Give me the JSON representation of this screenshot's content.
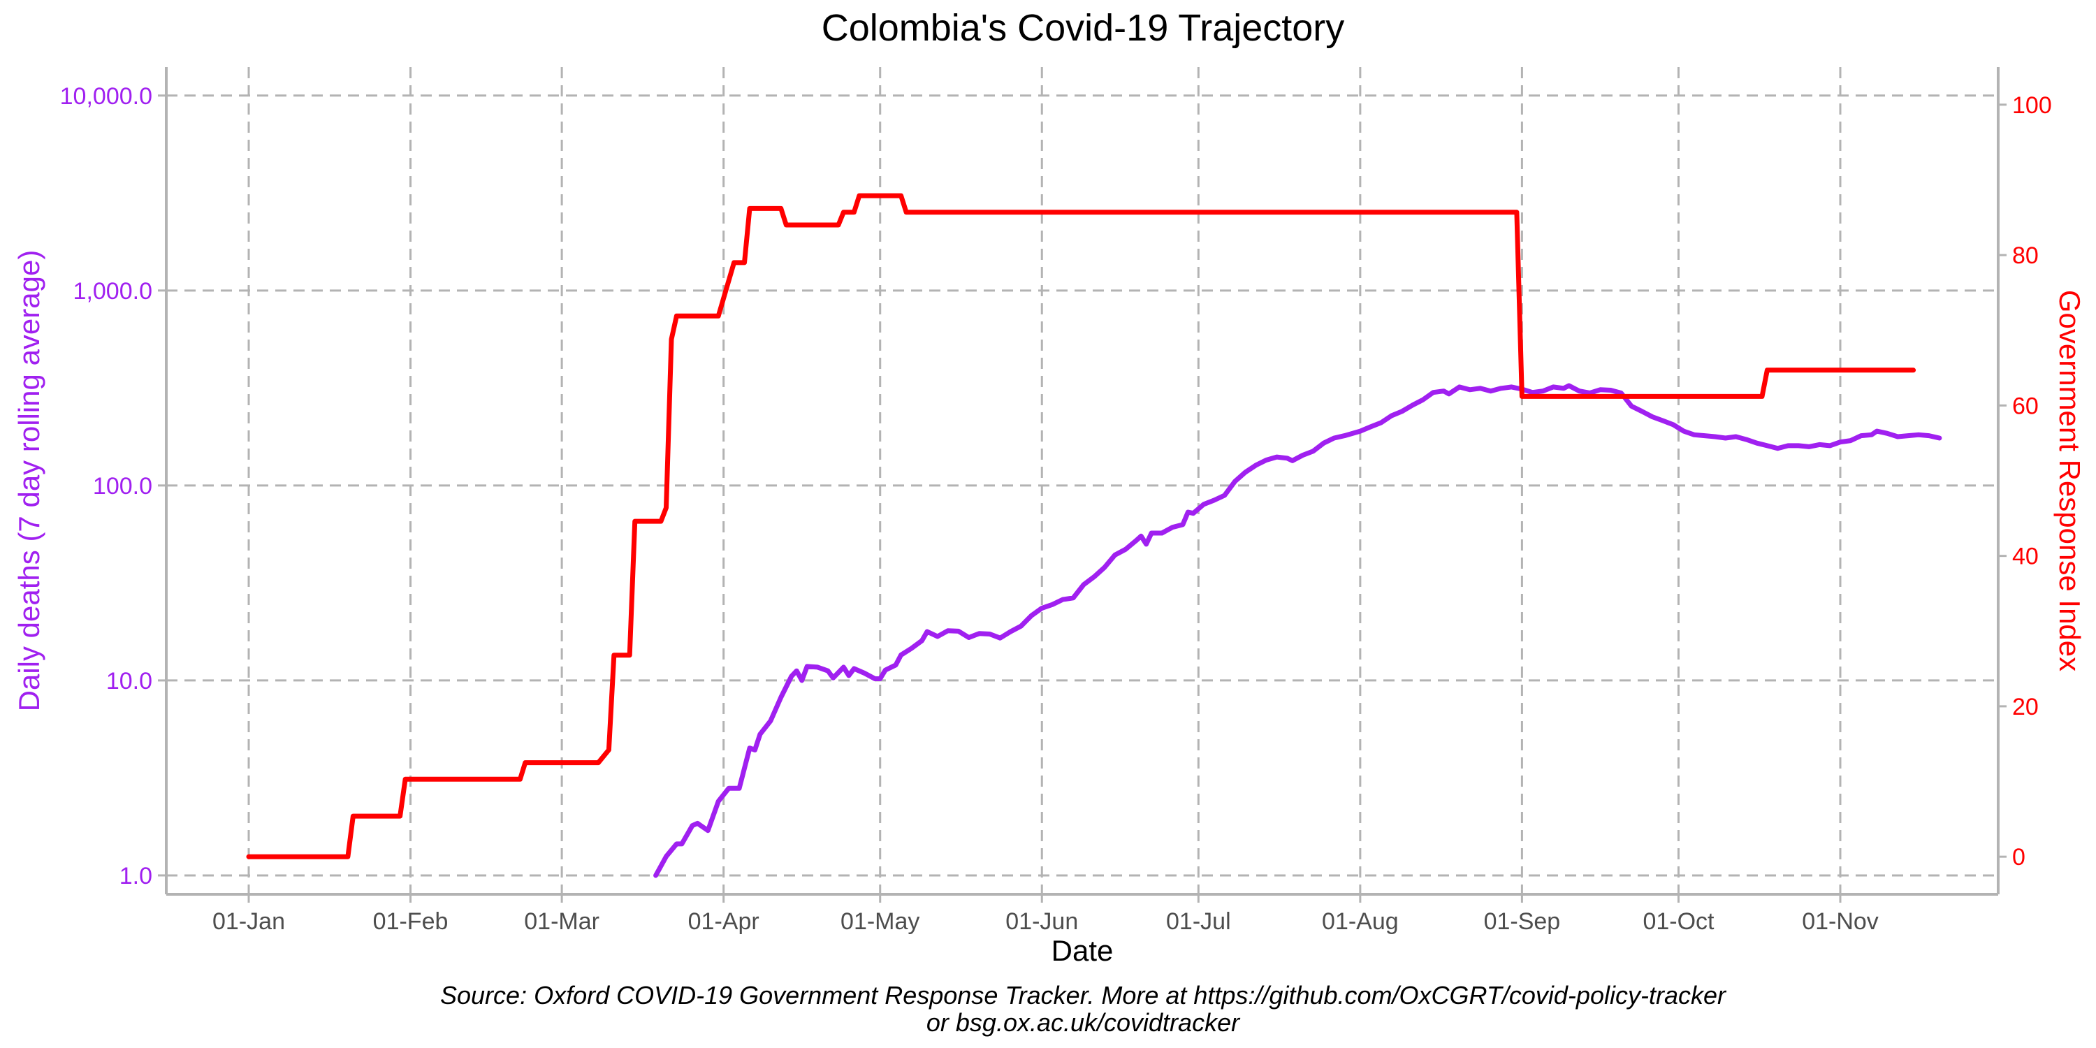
{
  "chart_data": {
    "type": "line",
    "title": "Colombia's Covid-19 Trajectory",
    "xlabel": "Date",
    "ylabel_left": "Daily deaths (7 day rolling average)",
    "ylabel_right": "Government Response Index",
    "x_domain": [
      "2020-01-01",
      "2020-11-20"
    ],
    "x_ticks": [
      {
        "date": "2020-01-01",
        "label": "01-Jan"
      },
      {
        "date": "2020-02-01",
        "label": "01-Feb"
      },
      {
        "date": "2020-03-01",
        "label": "01-Mar"
      },
      {
        "date": "2020-04-01",
        "label": "01-Apr"
      },
      {
        "date": "2020-05-01",
        "label": "01-May"
      },
      {
        "date": "2020-06-01",
        "label": "01-Jun"
      },
      {
        "date": "2020-07-01",
        "label": "01-Jul"
      },
      {
        "date": "2020-08-01",
        "label": "01-Aug"
      },
      {
        "date": "2020-09-01",
        "label": "01-Sep"
      },
      {
        "date": "2020-10-01",
        "label": "01-Oct"
      },
      {
        "date": "2020-11-01",
        "label": "01-Nov"
      }
    ],
    "y_left": {
      "scale": "log10",
      "ylim": [
        0.8,
        14000
      ],
      "ticks": [
        {
          "value": 1,
          "label": "1.0"
        },
        {
          "value": 10,
          "label": "10.0"
        },
        {
          "value": 100,
          "label": "100.0"
        },
        {
          "value": 1000,
          "label": "1,000.0"
        },
        {
          "value": 10000,
          "label": "10,000.0"
        }
      ],
      "color": "#a020f0"
    },
    "y_right": {
      "scale": "linear",
      "ylim": [
        -5,
        105
      ],
      "ticks": [
        {
          "value": 0,
          "label": "0"
        },
        {
          "value": 20,
          "label": "20"
        },
        {
          "value": 40,
          "label": "40"
        },
        {
          "value": 60,
          "label": "60"
        },
        {
          "value": 80,
          "label": "80"
        },
        {
          "value": 100,
          "label": "100"
        }
      ],
      "color": "#ff0000"
    },
    "grid": true,
    "series": [
      {
        "axis": "left",
        "color": "#a020f0",
        "points": [
          [
            "2020-03-19",
            1.0
          ],
          [
            "2020-03-21",
            1.25
          ],
          [
            "2020-03-23",
            1.45
          ],
          [
            "2020-03-24",
            1.45
          ],
          [
            "2020-03-26",
            1.8
          ],
          [
            "2020-03-27",
            1.85
          ],
          [
            "2020-03-29",
            1.7
          ],
          [
            "2020-03-31",
            2.4
          ],
          [
            "2020-04-02",
            2.8
          ],
          [
            "2020-04-04",
            2.8
          ],
          [
            "2020-04-06",
            4.5
          ],
          [
            "2020-04-07",
            4.4
          ],
          [
            "2020-04-08",
            5.3
          ],
          [
            "2020-04-10",
            6.2
          ],
          [
            "2020-04-12",
            8.2
          ],
          [
            "2020-04-14",
            10.5
          ],
          [
            "2020-04-15",
            11.2
          ],
          [
            "2020-04-16",
            10.0
          ],
          [
            "2020-04-17",
            11.8
          ],
          [
            "2020-04-19",
            11.7
          ],
          [
            "2020-04-21",
            11.2
          ],
          [
            "2020-04-22",
            10.3
          ],
          [
            "2020-04-24",
            11.7
          ],
          [
            "2020-04-25",
            10.6
          ],
          [
            "2020-04-26",
            11.5
          ],
          [
            "2020-04-28",
            10.9
          ],
          [
            "2020-04-30",
            10.2
          ],
          [
            "2020-05-01",
            10.2
          ],
          [
            "2020-05-02",
            11.3
          ],
          [
            "2020-05-04",
            12.0
          ],
          [
            "2020-05-05",
            13.5
          ],
          [
            "2020-05-07",
            14.6
          ],
          [
            "2020-05-09",
            16.0
          ],
          [
            "2020-05-10",
            17.8
          ],
          [
            "2020-05-12",
            16.8
          ],
          [
            "2020-05-14",
            18.0
          ],
          [
            "2020-05-16",
            17.9
          ],
          [
            "2020-05-18",
            16.6
          ],
          [
            "2020-05-20",
            17.4
          ],
          [
            "2020-05-22",
            17.3
          ],
          [
            "2020-05-24",
            16.5
          ],
          [
            "2020-05-26",
            17.8
          ],
          [
            "2020-05-28",
            19.0
          ],
          [
            "2020-05-30",
            21.5
          ],
          [
            "2020-06-01",
            23.5
          ],
          [
            "2020-06-03",
            24.5
          ],
          [
            "2020-06-05",
            26.0
          ],
          [
            "2020-06-07",
            26.5
          ],
          [
            "2020-06-09",
            31.0
          ],
          [
            "2020-06-11",
            34.0
          ],
          [
            "2020-06-13",
            38.0
          ],
          [
            "2020-06-15",
            44.0
          ],
          [
            "2020-06-17",
            47.0
          ],
          [
            "2020-06-19",
            52.0
          ],
          [
            "2020-06-20",
            55.0
          ],
          [
            "2020-06-21",
            50.0
          ],
          [
            "2020-06-22",
            57.0
          ],
          [
            "2020-06-24",
            57.0
          ],
          [
            "2020-06-26",
            61.0
          ],
          [
            "2020-06-28",
            63.0
          ],
          [
            "2020-06-29",
            73.0
          ],
          [
            "2020-06-30",
            72.0
          ],
          [
            "2020-07-02",
            80.0
          ],
          [
            "2020-07-04",
            84.0
          ],
          [
            "2020-07-06",
            89.0
          ],
          [
            "2020-07-08",
            105.0
          ],
          [
            "2020-07-10",
            117.0
          ],
          [
            "2020-07-12",
            127.0
          ],
          [
            "2020-07-14",
            135.0
          ],
          [
            "2020-07-16",
            140.0
          ],
          [
            "2020-07-18",
            138.0
          ],
          [
            "2020-07-19",
            134.0
          ],
          [
            "2020-07-21",
            143.0
          ],
          [
            "2020-07-23",
            150.0
          ],
          [
            "2020-07-25",
            165.0
          ],
          [
            "2020-07-27",
            175.0
          ],
          [
            "2020-07-29",
            180.0
          ],
          [
            "2020-08-01",
            190.0
          ],
          [
            "2020-08-03",
            200.0
          ],
          [
            "2020-08-05",
            210.0
          ],
          [
            "2020-08-07",
            228.0
          ],
          [
            "2020-08-09",
            240.0
          ],
          [
            "2020-08-11",
            258.0
          ],
          [
            "2020-08-13",
            275.0
          ],
          [
            "2020-08-15",
            300.0
          ],
          [
            "2020-08-17",
            305.0
          ],
          [
            "2020-08-18",
            295.0
          ],
          [
            "2020-08-20",
            320.0
          ],
          [
            "2020-08-22",
            310.0
          ],
          [
            "2020-08-24",
            315.0
          ],
          [
            "2020-08-26",
            305.0
          ],
          [
            "2020-08-28",
            315.0
          ],
          [
            "2020-08-30",
            320.0
          ],
          [
            "2020-09-01",
            312.0
          ],
          [
            "2020-09-03",
            300.0
          ],
          [
            "2020-09-05",
            305.0
          ],
          [
            "2020-09-07",
            320.0
          ],
          [
            "2020-09-09",
            315.0
          ],
          [
            "2020-09-10",
            325.0
          ],
          [
            "2020-09-12",
            305.0
          ],
          [
            "2020-09-14",
            298.0
          ],
          [
            "2020-09-16",
            310.0
          ],
          [
            "2020-09-18",
            308.0
          ],
          [
            "2020-09-20",
            298.0
          ],
          [
            "2020-09-22",
            255.0
          ],
          [
            "2020-09-24",
            240.0
          ],
          [
            "2020-09-26",
            225.0
          ],
          [
            "2020-09-28",
            215.0
          ],
          [
            "2020-09-30",
            205.0
          ],
          [
            "2020-10-02",
            190.0
          ],
          [
            "2020-10-04",
            182.0
          ],
          [
            "2020-10-06",
            180.0
          ],
          [
            "2020-10-08",
            178.0
          ],
          [
            "2020-10-10",
            175.0
          ],
          [
            "2020-10-12",
            178.0
          ],
          [
            "2020-10-14",
            172.0
          ],
          [
            "2020-10-16",
            165.0
          ],
          [
            "2020-10-18",
            160.0
          ],
          [
            "2020-10-20",
            155.0
          ],
          [
            "2020-10-22",
            160.0
          ],
          [
            "2020-10-24",
            160.0
          ],
          [
            "2020-10-26",
            158.0
          ],
          [
            "2020-10-28",
            162.0
          ],
          [
            "2020-10-30",
            160.0
          ],
          [
            "2020-11-01",
            167.0
          ],
          [
            "2020-11-03",
            170.0
          ],
          [
            "2020-11-05",
            180.0
          ],
          [
            "2020-11-07",
            182.0
          ],
          [
            "2020-11-08",
            190.0
          ],
          [
            "2020-11-10",
            185.0
          ],
          [
            "2020-11-12",
            178.0
          ],
          [
            "2020-11-14",
            180.0
          ],
          [
            "2020-11-16",
            182.0
          ],
          [
            "2020-11-18",
            180.0
          ],
          [
            "2020-11-20",
            175.0
          ]
        ]
      },
      {
        "axis": "right",
        "color": "#ff0000",
        "points": [
          [
            "2020-01-01",
            0.0
          ],
          [
            "2020-01-20",
            0.0
          ],
          [
            "2020-01-21",
            5.4
          ],
          [
            "2020-01-30",
            5.4
          ],
          [
            "2020-01-31",
            10.3
          ],
          [
            "2020-02-22",
            10.3
          ],
          [
            "2020-02-23",
            12.5
          ],
          [
            "2020-03-08",
            12.5
          ],
          [
            "2020-03-10",
            14.2
          ],
          [
            "2020-03-11",
            26.8
          ],
          [
            "2020-03-14",
            26.8
          ],
          [
            "2020-03-15",
            44.6
          ],
          [
            "2020-03-20",
            44.6
          ],
          [
            "2020-03-21",
            46.4
          ],
          [
            "2020-03-22",
            68.8
          ],
          [
            "2020-03-23",
            71.9
          ],
          [
            "2020-03-31",
            71.9
          ],
          [
            "2020-04-03",
            79.0
          ],
          [
            "2020-04-05",
            79.0
          ],
          [
            "2020-04-06",
            86.2
          ],
          [
            "2020-04-12",
            86.2
          ],
          [
            "2020-04-13",
            84.0
          ],
          [
            "2020-04-23",
            84.0
          ],
          [
            "2020-04-24",
            85.7
          ],
          [
            "2020-04-26",
            85.7
          ],
          [
            "2020-04-27",
            87.9
          ],
          [
            "2020-05-05",
            87.9
          ],
          [
            "2020-05-06",
            85.7
          ],
          [
            "2020-08-31",
            85.7
          ],
          [
            "2020-09-01",
            61.2
          ],
          [
            "2020-10-17",
            61.2
          ],
          [
            "2020-10-18",
            64.7
          ],
          [
            "2020-11-15",
            64.7
          ]
        ]
      }
    ]
  },
  "source_line1": "Source: Oxford COVID-19 Government Response Tracker. More at https://github.com/OxCGRT/covid-policy-tracker",
  "source_line2": "or bsg.ox.ac.uk/covidtracker"
}
